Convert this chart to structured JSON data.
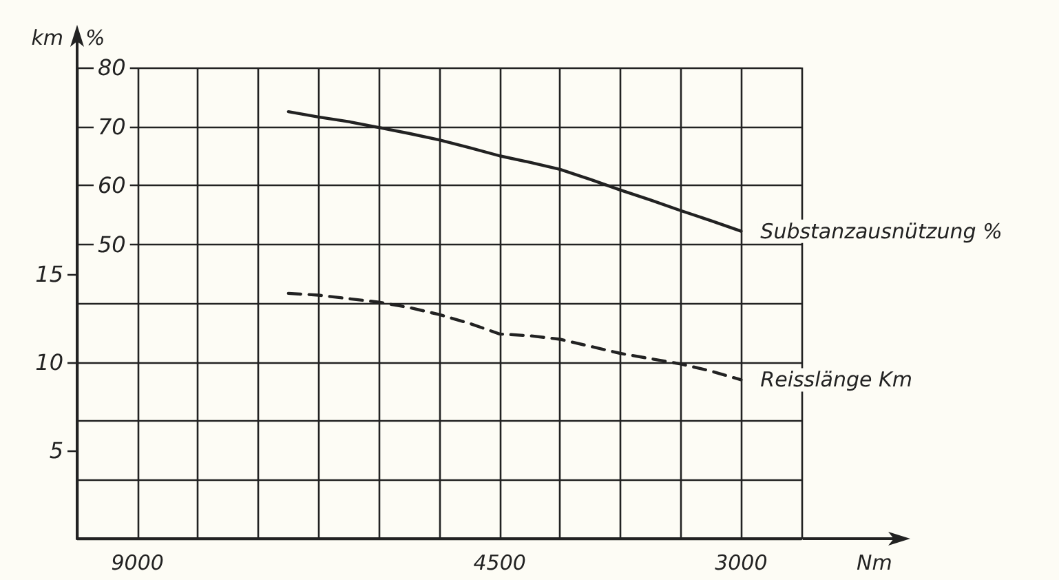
{
  "chart_data": {
    "type": "line",
    "xlabel": "Nm",
    "ylabel": "%",
    "y2label": "km",
    "categories": [
      null,
      null,
      "9000",
      null,
      null,
      null,
      null,
      null,
      null,
      null,
      null,
      null,
      null,
      null,
      "4500",
      null,
      null,
      null,
      null,
      null,
      null,
      null,
      "3000",
      null,
      null
    ],
    "series": [
      {
        "name": "Substanzausnützung %",
        "color": "#222222",
        "line_style": "solid",
        "values": [
          null,
          null,
          null,
          null,
          null,
          null,
          null,
          72.5,
          71.6,
          70.8,
          69.8,
          68.8,
          67.7,
          66.4,
          65.0,
          63.9,
          62.7,
          61.0,
          59.2,
          57.5,
          55.7,
          54.0,
          52.2,
          null,
          null
        ]
      },
      {
        "name": "Reisslänge Km",
        "color": "#222222",
        "line_style": "dashed",
        "axis": "y2",
        "values": [
          null,
          null,
          null,
          null,
          null,
          null,
          null,
          13.9,
          13.8,
          13.6,
          13.4,
          13.1,
          12.7,
          12.2,
          11.6,
          11.5,
          11.3,
          10.9,
          10.5,
          10.2,
          9.9,
          9.5,
          9.0,
          null,
          null
        ]
      }
    ],
    "ylim": [
      0,
      80
    ],
    "yticks": [
      {
        "value": 0,
        "label": null
      },
      {
        "value": 10,
        "label": null
      },
      {
        "value": 20,
        "label": null
      },
      {
        "value": 30,
        "label": null
      },
      {
        "value": 40,
        "label": null
      },
      50,
      60,
      70,
      80
    ],
    "y2lim": [
      0,
      26.7
    ],
    "y2ticks": [
      5,
      10,
      15
    ],
    "grid": true,
    "legend": false,
    "marker": "none"
  }
}
